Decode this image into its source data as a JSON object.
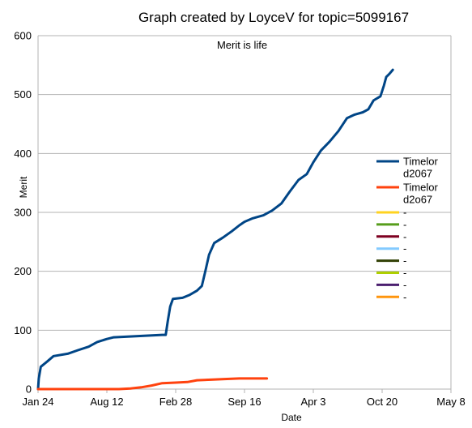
{
  "chart_data": {
    "type": "line",
    "title": "Graph created by LoyceV for topic=5099167",
    "subtitle": "Merit is life",
    "xlabel": "Date",
    "ylabel": "Merit",
    "ylim": [
      0,
      600
    ],
    "yticks": [
      0,
      100,
      200,
      300,
      400,
      500,
      600
    ],
    "xticks": [
      "Jan 24",
      "Aug 12",
      "Feb 28",
      "Sep 16",
      "Apr 3",
      "Oct 20",
      "May 8"
    ],
    "grid": "horizontal",
    "legend_position": "right",
    "series": [
      {
        "name": "Timelor d2067",
        "color": "#004586",
        "points": [
          [
            "Jan 24",
            0
          ],
          [
            "Jan 26",
            18
          ],
          [
            "Feb 1",
            38
          ],
          [
            "Feb 20",
            47
          ],
          [
            "Mar 10",
            56
          ],
          [
            "Apr 20",
            60
          ],
          [
            "May 20",
            66
          ],
          [
            "Jun 20",
            72
          ],
          [
            "Jul 15",
            80
          ],
          [
            "Aug 12",
            85
          ],
          [
            "Sep 1",
            88
          ],
          [
            "Jan 20",
            92
          ],
          [
            "Jan 30",
            92
          ],
          [
            "Feb 5",
            115
          ],
          [
            "Feb 12",
            140
          ],
          [
            "Feb 20",
            153
          ],
          [
            "Mar 20",
            155
          ],
          [
            "Apr 10",
            160
          ],
          [
            "May 1",
            167
          ],
          [
            "May 15",
            175
          ],
          [
            "May 25",
            200
          ],
          [
            "Jun 5",
            228
          ],
          [
            "Jun 20",
            248
          ],
          [
            "Jul 15",
            257
          ],
          [
            "Aug 10",
            268
          ],
          [
            "Sep 1",
            278
          ],
          [
            "Sep 16",
            284
          ],
          [
            "Oct 10",
            290
          ],
          [
            "Nov 10",
            295
          ],
          [
            "Dec 5",
            303
          ],
          [
            "Jan 1",
            315
          ],
          [
            "Jan 25",
            335
          ],
          [
            "Feb 20",
            355
          ],
          [
            "Mar 15",
            365
          ],
          [
            "Apr 3",
            385
          ],
          [
            "Apr 25",
            405
          ],
          [
            "May 20",
            420
          ],
          [
            "Jun 15",
            438
          ],
          [
            "Jul 10",
            460
          ],
          [
            "Aug 1",
            466
          ],
          [
            "Aug 25",
            470
          ],
          [
            "Sep 10",
            475
          ],
          [
            "Sep 25",
            490
          ],
          [
            "Oct 15",
            497
          ],
          [
            "Oct 25",
            515
          ],
          [
            "Nov 1",
            530
          ],
          [
            "Nov 10",
            535
          ],
          [
            "Nov 20",
            542
          ]
        ]
      },
      {
        "name": "Timelor d2o67",
        "color": "#ff420e",
        "points": [
          [
            "Jan 24",
            0
          ],
          [
            "Sep 16",
            0
          ],
          [
            "Oct 20",
            1
          ],
          [
            "Nov 20",
            3
          ],
          [
            "Dec 20",
            6
          ],
          [
            "Jan 20",
            10
          ],
          [
            "Feb 28",
            11
          ],
          [
            "Apr 3",
            12
          ],
          [
            "May 1",
            15
          ],
          [
            "Jun 10",
            16
          ],
          [
            "Jul 20",
            17
          ],
          [
            "Sep 1",
            18
          ],
          [
            "Nov 20",
            18
          ]
        ]
      },
      {
        "name": "-",
        "color": "#ffd320",
        "points": []
      },
      {
        "name": "-",
        "color": "#579d1c",
        "points": []
      },
      {
        "name": "-",
        "color": "#7e0021",
        "points": []
      },
      {
        "name": "-",
        "color": "#83caff",
        "points": []
      },
      {
        "name": "-",
        "color": "#314004",
        "points": []
      },
      {
        "name": "-",
        "color": "#aecf00",
        "points": []
      },
      {
        "name": "-",
        "color": "#4b1f6f",
        "points": []
      },
      {
        "name": "-",
        "color": "#ff950e",
        "points": []
      }
    ]
  }
}
